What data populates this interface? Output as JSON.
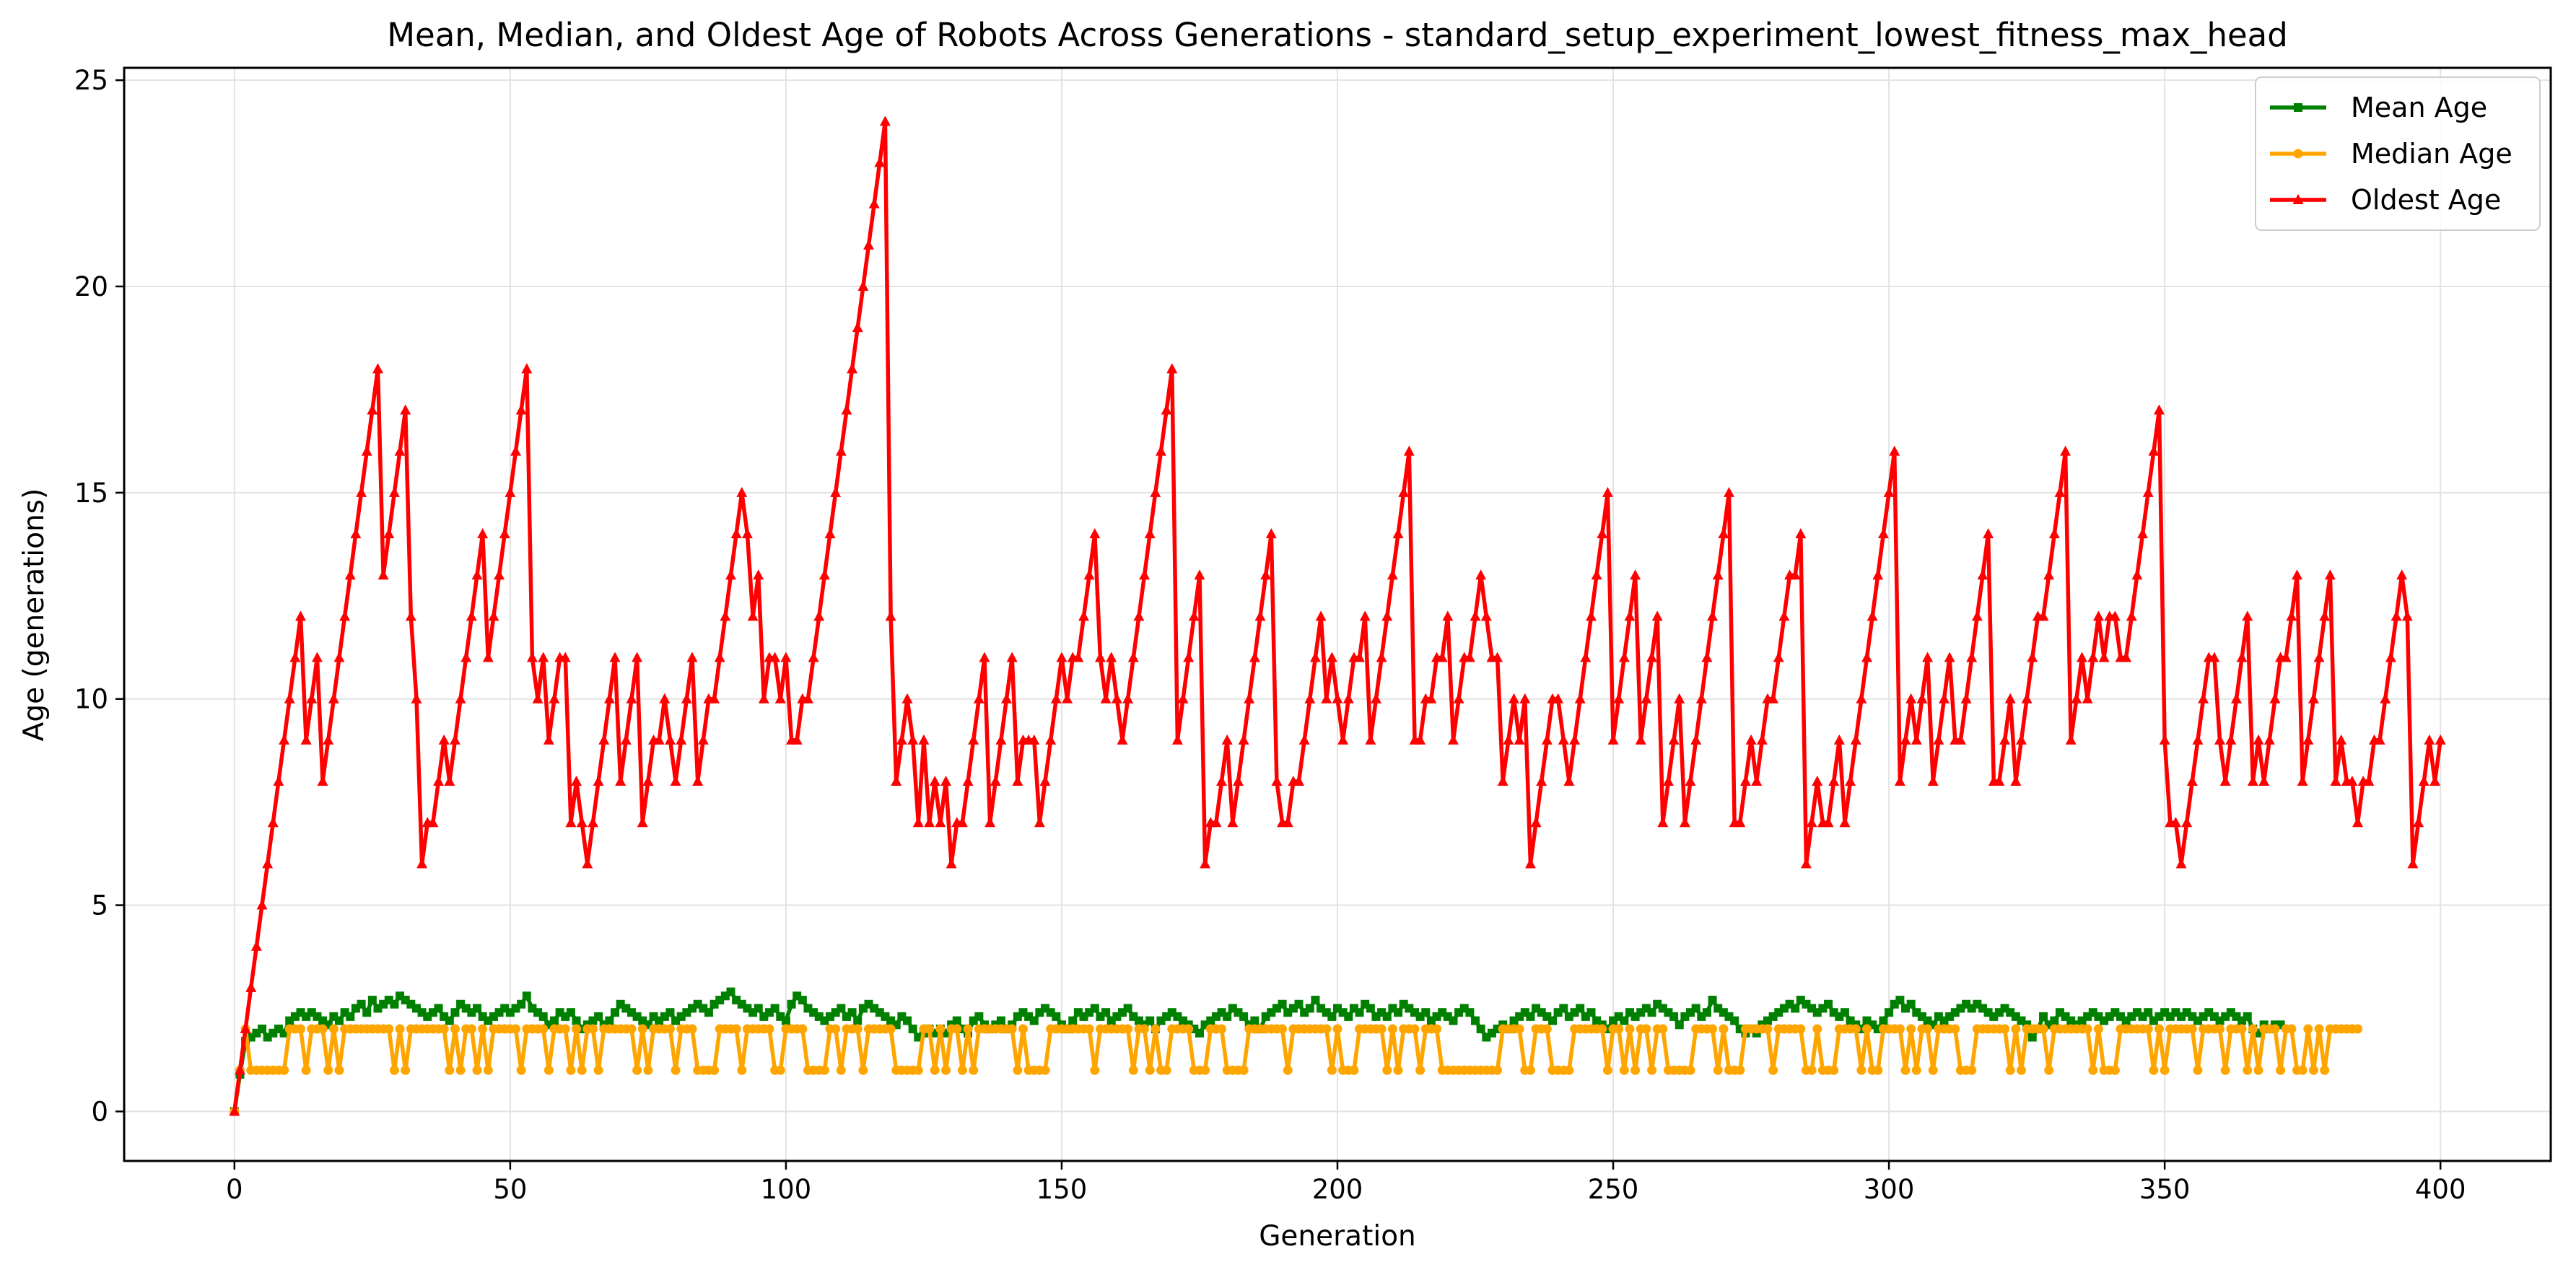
{
  "chart_data": {
    "type": "line",
    "title": "Mean, Median, and Oldest Age of Robots Across Generations - standard_setup_experiment_lowest_fitness_max_head",
    "xlabel": "Generation",
    "ylabel": "Age (generations)",
    "xlim": [
      -20,
      420
    ],
    "ylim": [
      -1.2,
      25.3
    ],
    "xticks": [
      0,
      50,
      100,
      150,
      200,
      250,
      300,
      350,
      400
    ],
    "yticks": [
      0,
      5,
      10,
      15,
      20,
      25
    ],
    "grid": true,
    "legend_position": "top-right",
    "series": [
      {
        "name": "Mean Age",
        "color": "#008000",
        "marker": "square",
        "values": [
          0.0,
          0.9,
          1.7,
          1.8,
          1.9,
          2.0,
          1.8,
          1.9,
          2.0,
          1.9,
          2.2,
          2.3,
          2.4,
          2.3,
          2.4,
          2.3,
          2.2,
          2.1,
          2.3,
          2.2,
          2.4,
          2.3,
          2.5,
          2.6,
          2.4,
          2.7,
          2.5,
          2.6,
          2.7,
          2.6,
          2.8,
          2.7,
          2.6,
          2.5,
          2.4,
          2.3,
          2.4,
          2.5,
          2.3,
          2.2,
          2.4,
          2.6,
          2.5,
          2.4,
          2.5,
          2.3,
          2.2,
          2.3,
          2.4,
          2.5,
          2.4,
          2.5,
          2.6,
          2.8,
          2.5,
          2.4,
          2.3,
          2.1,
          2.2,
          2.4,
          2.3,
          2.4,
          2.2,
          2.0,
          2.1,
          2.2,
          2.3,
          2.1,
          2.2,
          2.4,
          2.6,
          2.5,
          2.4,
          2.3,
          2.2,
          2.1,
          2.3,
          2.2,
          2.3,
          2.4,
          2.2,
          2.3,
          2.4,
          2.5,
          2.6,
          2.5,
          2.4,
          2.6,
          2.7,
          2.8,
          2.9,
          2.7,
          2.6,
          2.5,
          2.4,
          2.5,
          2.3,
          2.4,
          2.5,
          2.3,
          2.2,
          2.6,
          2.8,
          2.7,
          2.5,
          2.4,
          2.3,
          2.2,
          2.3,
          2.4,
          2.5,
          2.3,
          2.4,
          2.2,
          2.5,
          2.6,
          2.5,
          2.4,
          2.3,
          2.2,
          2.1,
          2.3,
          2.2,
          2.0,
          1.8,
          1.9,
          2.0,
          1.9,
          2.0,
          1.9,
          2.1,
          2.2,
          2.0,
          1.9,
          2.2,
          2.3,
          2.1,
          2.0,
          2.1,
          2.2,
          2.0,
          2.1,
          2.3,
          2.4,
          2.3,
          2.2,
          2.4,
          2.5,
          2.4,
          2.3,
          2.1,
          2.0,
          2.2,
          2.4,
          2.3,
          2.4,
          2.5,
          2.3,
          2.4,
          2.2,
          2.3,
          2.4,
          2.5,
          2.3,
          2.2,
          2.1,
          2.2,
          2.0,
          2.2,
          2.3,
          2.4,
          2.3,
          2.2,
          2.1,
          2.0,
          1.9,
          2.1,
          2.2,
          2.3,
          2.4,
          2.3,
          2.5,
          2.4,
          2.3,
          2.1,
          2.2,
          2.0,
          2.3,
          2.4,
          2.5,
          2.6,
          2.4,
          2.5,
          2.6,
          2.4,
          2.5,
          2.7,
          2.5,
          2.4,
          2.3,
          2.5,
          2.4,
          2.3,
          2.5,
          2.4,
          2.6,
          2.5,
          2.3,
          2.4,
          2.3,
          2.5,
          2.4,
          2.6,
          2.5,
          2.4,
          2.3,
          2.4,
          2.2,
          2.3,
          2.4,
          2.3,
          2.2,
          2.4,
          2.5,
          2.4,
          2.2,
          2.0,
          1.8,
          1.9,
          2.0,
          2.1,
          2.0,
          2.2,
          2.3,
          2.4,
          2.3,
          2.5,
          2.4,
          2.3,
          2.2,
          2.4,
          2.5,
          2.3,
          2.4,
          2.5,
          2.3,
          2.4,
          2.2,
          2.1,
          2.0,
          2.2,
          2.3,
          2.2,
          2.4,
          2.3,
          2.4,
          2.5,
          2.4,
          2.6,
          2.5,
          2.4,
          2.3,
          2.1,
          2.3,
          2.4,
          2.5,
          2.3,
          2.4,
          2.7,
          2.5,
          2.4,
          2.3,
          2.2,
          2.0,
          1.9,
          2.0,
          1.9,
          2.1,
          2.2,
          2.3,
          2.4,
          2.5,
          2.6,
          2.5,
          2.7,
          2.6,
          2.5,
          2.4,
          2.5,
          2.6,
          2.4,
          2.3,
          2.4,
          2.2,
          2.1,
          2.0,
          2.2,
          2.1,
          2.0,
          2.2,
          2.4,
          2.6,
          2.7,
          2.5,
          2.6,
          2.4,
          2.3,
          2.2,
          2.1,
          2.3,
          2.2,
          2.3,
          2.4,
          2.5,
          2.6,
          2.5,
          2.6,
          2.5,
          2.4,
          2.3,
          2.4,
          2.5,
          2.4,
          2.3,
          2.2,
          2.1,
          1.8,
          2.0,
          2.3,
          2.1,
          2.2,
          2.4,
          2.3,
          2.2,
          2.1,
          2.2,
          2.3,
          2.4,
          2.3,
          2.2,
          2.3,
          2.4,
          2.3,
          2.2,
          2.3,
          2.4,
          2.3,
          2.4,
          2.2,
          2.3,
          2.4,
          2.3,
          2.4,
          2.3,
          2.4,
          2.3,
          2.2,
          2.3,
          2.4,
          2.3,
          2.2,
          2.3,
          2.4,
          2.3,
          2.2,
          2.3,
          2.0,
          1.9,
          2.1,
          2.0,
          2.1,
          2.1
        ]
      },
      {
        "name": "Median Age",
        "color": "#ffa500",
        "marker": "circle",
        "values": [
          0,
          1,
          2,
          1,
          1,
          1,
          1,
          1,
          1,
          1,
          2,
          2,
          2,
          1,
          2,
          2,
          2,
          1,
          2,
          1,
          2,
          2,
          2,
          2,
          2,
          2,
          2,
          2,
          2,
          1,
          2,
          1,
          2,
          2,
          2,
          2,
          2,
          2,
          2,
          1,
          2,
          1,
          2,
          2,
          1,
          2,
          1,
          2,
          2,
          2,
          2,
          2,
          1,
          2,
          2,
          2,
          2,
          1,
          2,
          2,
          2,
          1,
          2,
          1,
          2,
          2,
          1,
          2,
          2,
          2,
          2,
          2,
          2,
          1,
          2,
          1,
          2,
          2,
          2,
          2,
          1,
          2,
          2,
          2,
          1,
          1,
          1,
          1,
          2,
          2,
          2,
          2,
          1,
          2,
          2,
          2,
          2,
          2,
          1,
          1,
          2,
          2,
          2,
          2,
          1,
          1,
          1,
          1,
          2,
          2,
          1,
          2,
          2,
          2,
          1,
          2,
          2,
          2,
          2,
          2,
          1,
          1,
          1,
          1,
          1,
          2,
          2,
          1,
          2,
          1,
          2,
          2,
          1,
          2,
          1,
          2,
          2,
          2,
          2,
          2,
          2,
          2,
          1,
          2,
          1,
          1,
          1,
          1,
          2,
          2,
          2,
          2,
          2,
          2,
          2,
          2,
          1,
          2,
          2,
          2,
          2,
          2,
          2,
          1,
          2,
          2,
          1,
          2,
          1,
          1,
          2,
          2,
          2,
          2,
          1,
          1,
          1,
          2,
          2,
          2,
          1,
          1,
          1,
          1,
          2,
          2,
          2,
          2,
          2,
          2,
          2,
          1,
          2,
          2,
          2,
          2,
          2,
          2,
          2,
          1,
          2,
          1,
          1,
          1,
          2,
          2,
          2,
          2,
          2,
          1,
          2,
          1,
          2,
          2,
          2,
          1,
          2,
          2,
          2,
          1,
          1,
          1,
          1,
          1,
          1,
          1,
          1,
          1,
          1,
          1,
          2,
          2,
          2,
          2,
          1,
          1,
          2,
          2,
          2,
          1,
          1,
          1,
          1,
          2,
          2,
          2,
          2,
          2,
          2,
          1,
          2,
          2,
          1,
          2,
          1,
          2,
          2,
          1,
          2,
          2,
          1,
          1,
          1,
          1,
          1,
          2,
          2,
          2,
          2,
          1,
          2,
          1,
          1,
          1,
          2,
          2,
          2,
          2,
          2,
          1,
          2,
          2,
          2,
          2,
          2,
          1,
          1,
          2,
          1,
          1,
          1,
          2,
          2,
          2,
          2,
          1,
          2,
          1,
          1,
          2,
          2,
          2,
          2,
          1,
          2,
          1,
          2,
          2,
          1,
          2,
          2,
          2,
          2,
          1,
          1,
          1,
          2,
          2,
          2,
          2,
          2,
          2,
          1,
          2,
          1,
          2,
          2,
          2,
          2,
          1,
          2,
          2,
          2,
          2,
          2,
          2,
          2,
          1,
          2,
          1,
          1,
          1,
          2,
          2,
          2,
          2,
          2,
          2,
          1,
          2,
          1,
          2,
          2,
          2,
          2,
          2,
          1,
          2,
          2,
          2,
          2,
          1,
          2,
          2,
          2,
          1,
          2,
          1,
          2,
          2,
          2,
          1,
          2,
          2,
          1,
          1,
          2,
          1,
          2,
          1,
          2,
          2,
          2,
          2,
          2,
          2
        ]
      },
      {
        "name": "Oldest Age",
        "color": "#ff0000",
        "marker": "triangle",
        "values": [
          0,
          1,
          2,
          3,
          4,
          5,
          6,
          7,
          8,
          9,
          10,
          11,
          12,
          9,
          10,
          11,
          8,
          9,
          10,
          11,
          12,
          13,
          14,
          15,
          16,
          17,
          18,
          13,
          14,
          15,
          16,
          17,
          12,
          10,
          6,
          7,
          7,
          8,
          9,
          8,
          9,
          10,
          11,
          12,
          13,
          14,
          11,
          12,
          13,
          14,
          15,
          16,
          17,
          18,
          11,
          10,
          11,
          9,
          10,
          11,
          11,
          7,
          8,
          7,
          6,
          7,
          8,
          9,
          10,
          11,
          8,
          9,
          10,
          11,
          7,
          8,
          9,
          9,
          10,
          9,
          8,
          9,
          10,
          11,
          8,
          9,
          10,
          10,
          11,
          12,
          13,
          14,
          15,
          14,
          12,
          13,
          10,
          11,
          11,
          10,
          11,
          9,
          9,
          10,
          10,
          11,
          12,
          13,
          14,
          15,
          16,
          17,
          18,
          19,
          20,
          21,
          22,
          23,
          24,
          12,
          8,
          9,
          10,
          9,
          7,
          9,
          7,
          8,
          7,
          8,
          6,
          7,
          7,
          8,
          9,
          10,
          11,
          7,
          8,
          9,
          10,
          11,
          8,
          9,
          9,
          9,
          7,
          8,
          9,
          10,
          11,
          10,
          11,
          11,
          12,
          13,
          14,
          11,
          10,
          11,
          10,
          9,
          10,
          11,
          12,
          13,
          14,
          15,
          16,
          17,
          18,
          9,
          10,
          11,
          12,
          13,
          6,
          7,
          7,
          8,
          9,
          7,
          8,
          9,
          10,
          11,
          12,
          13,
          14,
          8,
          7,
          7,
          8,
          8,
          9,
          10,
          11,
          12,
          10,
          11,
          10,
          9,
          10,
          11,
          11,
          12,
          9,
          10,
          11,
          12,
          13,
          14,
          15,
          16,
          9,
          9,
          10,
          10,
          11,
          11,
          12,
          9,
          10,
          11,
          11,
          12,
          13,
          12,
          11,
          11,
          8,
          9,
          10,
          9,
          10,
          6,
          7,
          8,
          9,
          10,
          10,
          9,
          8,
          9,
          10,
          11,
          12,
          13,
          14,
          15,
          9,
          10,
          11,
          12,
          13,
          9,
          10,
          11,
          12,
          7,
          8,
          9,
          10,
          7,
          8,
          9,
          10,
          11,
          12,
          13,
          14,
          15,
          7,
          7,
          8,
          9,
          8,
          9,
          10,
          10,
          11,
          12,
          13,
          13,
          14,
          6,
          7,
          8,
          7,
          7,
          8,
          9,
          7,
          8,
          9,
          10,
          11,
          12,
          13,
          14,
          15,
          16,
          8,
          9,
          10,
          9,
          10,
          11,
          8,
          9,
          10,
          11,
          9,
          9,
          10,
          11,
          12,
          13,
          14,
          8,
          8,
          9,
          10,
          8,
          9,
          10,
          11,
          12,
          12,
          13,
          14,
          15,
          16,
          9,
          10,
          11,
          10,
          11,
          12,
          11,
          12,
          12,
          11,
          11,
          12,
          13,
          14,
          15,
          16,
          17,
          9,
          7,
          7,
          6,
          7,
          8,
          9,
          10,
          11,
          11,
          9,
          8,
          9,
          10,
          11,
          12,
          8,
          9,
          8,
          9,
          10,
          11,
          11,
          12,
          13,
          8,
          9,
          10,
          11,
          12,
          13,
          8,
          9,
          8,
          8,
          7,
          8,
          8,
          9,
          9,
          10,
          11,
          12,
          13,
          12,
          6,
          7,
          8,
          9,
          8,
          9
        ]
      }
    ]
  }
}
